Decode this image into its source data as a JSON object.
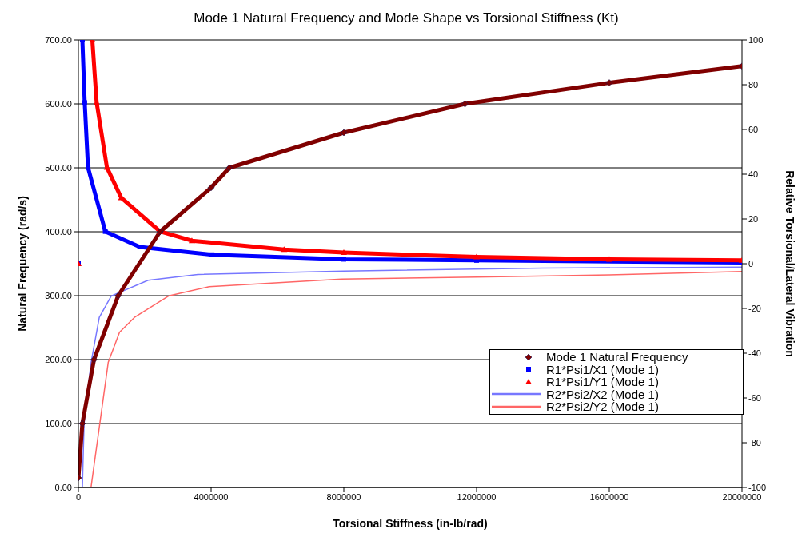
{
  "chart_data": {
    "type": "line",
    "title": "Mode 1 Natural Frequency and Mode Shape vs Torsional Stiffness (Kt)",
    "xlabel": "Torsional Stiffness (in-lb/rad)",
    "ylabel": "Natural Frequency (rad/s)",
    "y2label": "Relative Torsional/Lateral Vibration",
    "xlim": [
      0,
      20000000
    ],
    "xticks": [
      0,
      4000000,
      8000000,
      12000000,
      16000000,
      20000000
    ],
    "ylim": [
      0,
      700
    ],
    "yticks": [
      {
        "value": 0,
        "label": "0.00"
      },
      {
        "value": 100,
        "label": "100.00"
      },
      {
        "value": 200,
        "label": "200.00"
      },
      {
        "value": 300,
        "label": "300.00"
      },
      {
        "value": 400,
        "label": "400.00"
      },
      {
        "value": 500,
        "label": "500.00"
      },
      {
        "value": 600,
        "label": "600.00"
      },
      {
        "value": 700,
        "label": "700.00"
      }
    ],
    "y2lim": [
      -100,
      100
    ],
    "y2ticks": [
      -100,
      -80,
      -60,
      -40,
      -20,
      0,
      20,
      40,
      60,
      80,
      100
    ],
    "grid": "y",
    "legend": "bottom right",
    "line_style": "solid",
    "series": [
      {
        "name": "Mode 1 Natural Frequency",
        "color": "#800000",
        "marker": "diamond",
        "x": [
          0,
          120000,
          470000,
          1200000,
          2460000,
          4000000,
          4550000,
          8000000,
          11650000,
          16000000,
          20000000
        ],
        "values": [
          15,
          100,
          200,
          300,
          400,
          469,
          500,
          555,
          600,
          633,
          659
        ]
      },
      {
        "name": "R1*Psi1/X1 (Mode 1)",
        "color": "#0000ff",
        "marker": "square",
        "axis": "y2",
        "x": [
          0,
          60000,
          120000,
          190000,
          290000,
          810000,
          1850000,
          4030000,
          8000000,
          12000000,
          20000000
        ],
        "values": [
          0,
          null,
          100,
          72,
          43,
          14.4,
          7.5,
          4,
          2,
          1.5,
          0.5
        ]
      },
      {
        "name": "R1*Psi1/Y1 (Mode 1)",
        "color": "#ff0000",
        "marker": "triangle",
        "axis": "y2",
        "x": [
          0,
          200000,
          420000,
          550000,
          860000,
          1290000,
          2460000,
          3420000,
          6200000,
          8000000,
          12000000,
          16000000,
          20000000
        ],
        "values": [
          0,
          null,
          100,
          72,
          43,
          29.5,
          14.4,
          10.3,
          6.3,
          5,
          3,
          2,
          1.5
        ]
      },
      {
        "name": "R2*Psi2/X2 (Mode 1)",
        "color": "#7777ff",
        "marker": "none",
        "axis": "y2",
        "x": [
          120000,
          170000,
          380000,
          630000,
          990000,
          2100000,
          3600000,
          8000000,
          14000000,
          20000000
        ],
        "values": [
          -100,
          -71.6,
          -44.3,
          -24,
          -14.4,
          -7.4,
          -4.8,
          -3.3,
          -2,
          -1.5
        ]
      },
      {
        "name": "R2*Psi2/Y2 (Mode 1)",
        "color": "#ff6666",
        "marker": "none",
        "axis": "y2",
        "x": [
          380000,
          900000,
          1240000,
          1690000,
          2720000,
          3940000,
          7930000,
          12000000,
          16000000,
          20000000
        ],
        "values": [
          -100,
          -44,
          -30.6,
          -24,
          -14.4,
          -10.3,
          -6.9,
          -6,
          -5,
          -3.5
        ]
      }
    ]
  }
}
